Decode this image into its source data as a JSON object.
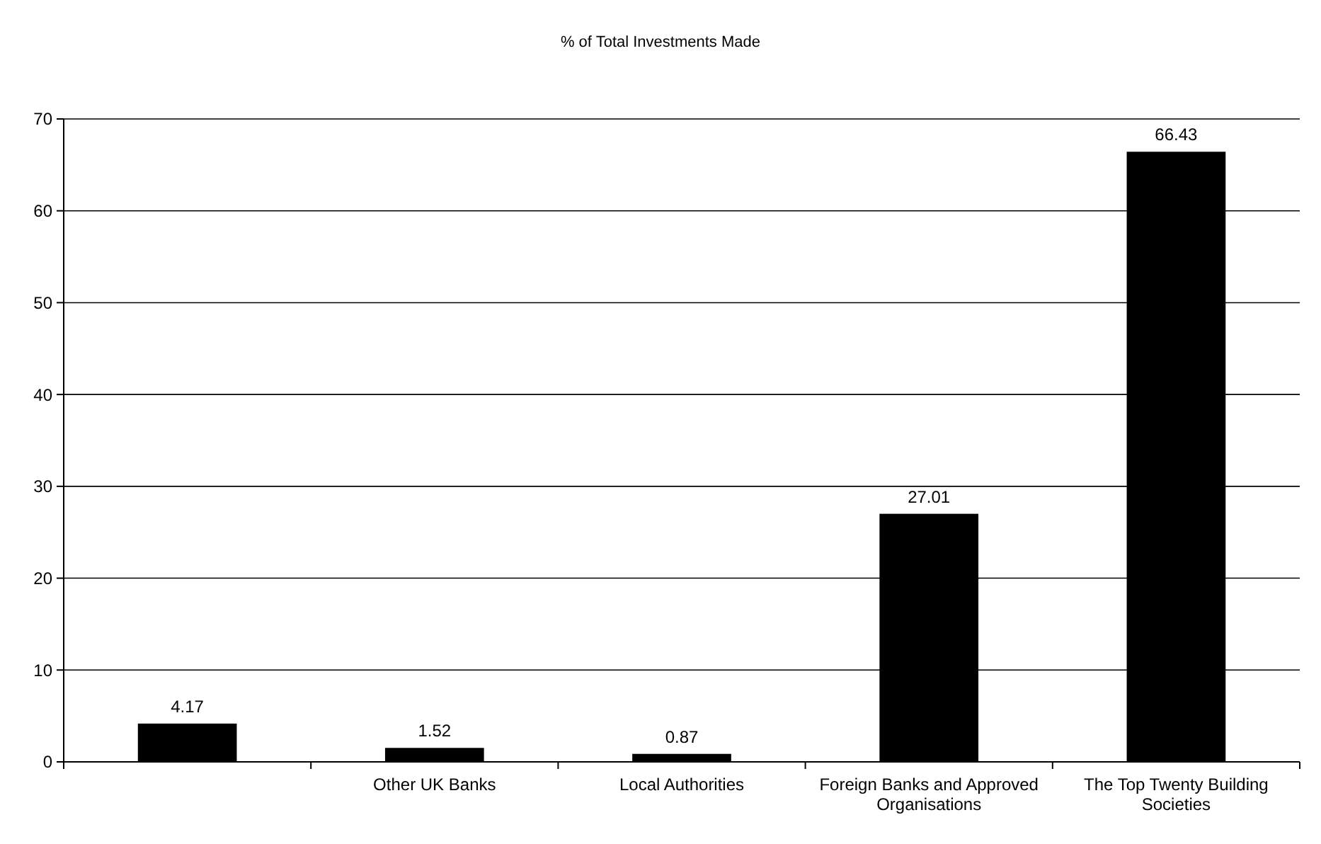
{
  "chart_data": {
    "type": "bar",
    "title": "% of Total Investments Made",
    "categories": [
      null,
      "Other UK Banks",
      "Local Authorities",
      "Foreign Banks and Approved Organisations",
      "The Top Twenty Building Societies"
    ],
    "values": [
      4.17,
      1.52,
      0.87,
      27.01,
      66.43
    ],
    "color": "#000000",
    "ylim": [
      0,
      70
    ],
    "yticks": [
      0,
      10,
      20,
      30,
      40,
      50,
      60,
      70
    ],
    "grid": "y",
    "data_labels": true
  }
}
